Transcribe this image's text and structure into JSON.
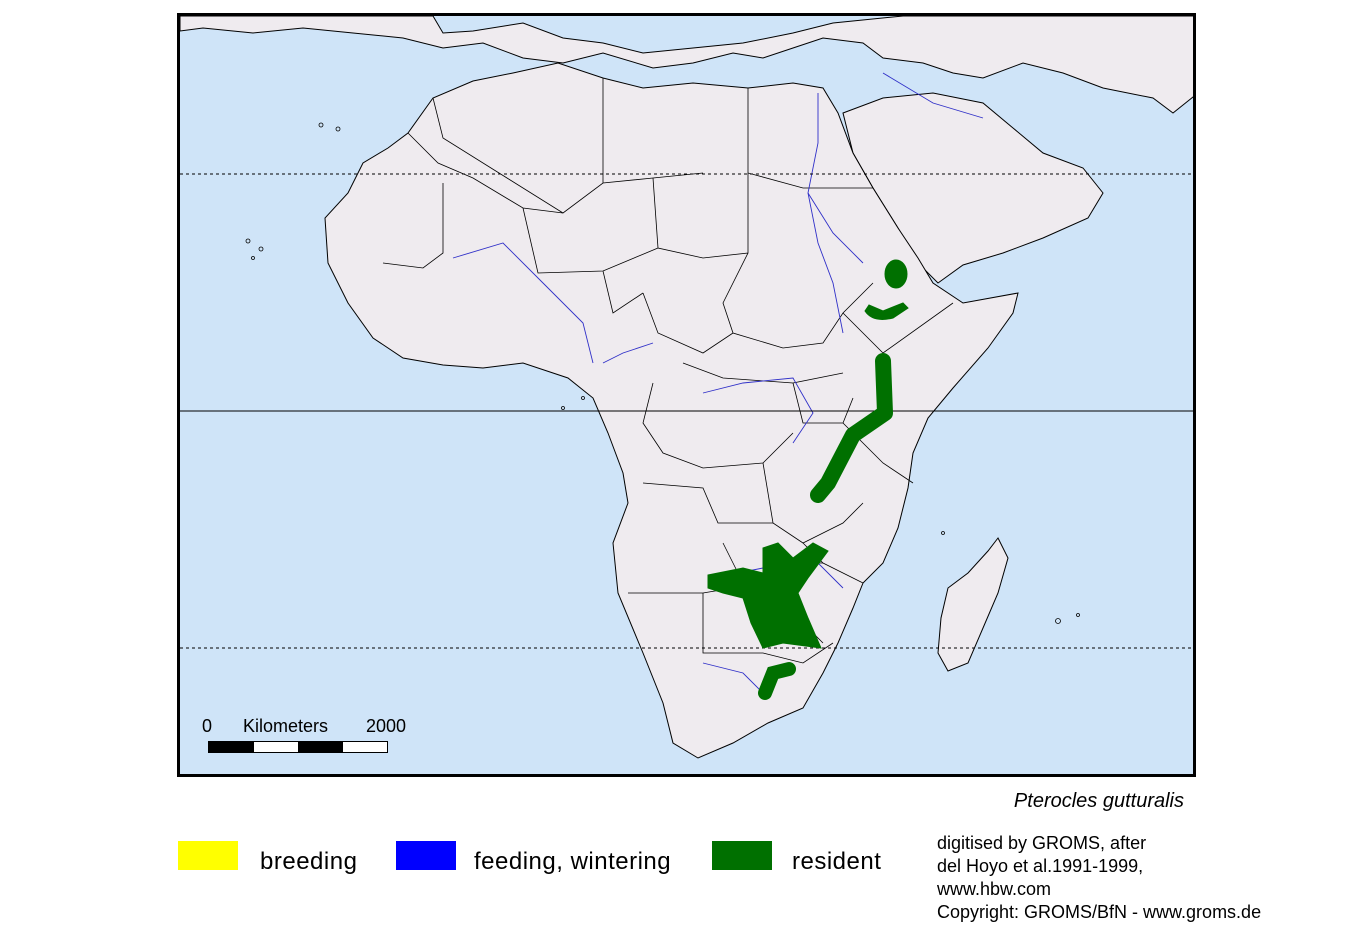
{
  "map": {
    "colors": {
      "ocean": "#cfe4f8",
      "land": "#efebef",
      "border": "#000000",
      "river": "#3030c8",
      "range": "#007000"
    },
    "scale": {
      "start": "0",
      "unit": "Kilometers",
      "end": "2000"
    }
  },
  "species": "Pterocles gutturalis",
  "legend": [
    {
      "label": "breeding",
      "color": "#ffff00"
    },
    {
      "label": "feeding, wintering",
      "color": "#0000ff"
    },
    {
      "label": "resident",
      "color": "#007000"
    }
  ],
  "credit": {
    "line1": "digitised by GROMS, after",
    "line2": "del Hoyo et al.1991-1999,",
    "line3": "www.hbw.com",
    "line4": "Copyright: GROMS/BfN - www.groms.de"
  }
}
